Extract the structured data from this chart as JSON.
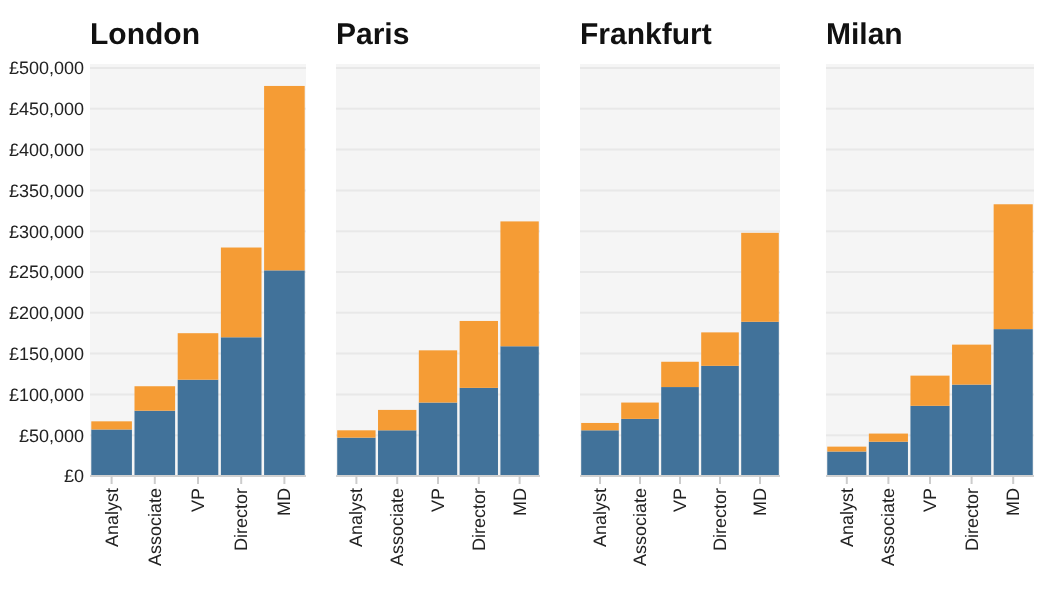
{
  "chart_data": [
    {
      "type": "bar",
      "title": "London",
      "stacked": true,
      "categories": [
        "Analyst",
        "Associate",
        "VP",
        "Director",
        "MD"
      ],
      "series": [
        {
          "color": "#41729a",
          "values": [
            57000,
            80000,
            118000,
            170000,
            252000
          ]
        },
        {
          "color": "#f59c35",
          "values": [
            10000,
            30000,
            57000,
            110000,
            226000
          ]
        }
      ],
      "ylim": [
        0,
        500000
      ],
      "yticks": [
        {
          "value": 0,
          "label": "£0"
        },
        {
          "value": 50000,
          "label": "£50,000"
        },
        {
          "value": 100000,
          "label": "£100,000"
        },
        {
          "value": 150000,
          "label": "£150,000"
        },
        {
          "value": 200000,
          "label": "£200,000"
        },
        {
          "value": 250000,
          "label": "£250,000"
        },
        {
          "value": 300000,
          "label": "£300,000"
        },
        {
          "value": 350000,
          "label": "£350,000"
        },
        {
          "value": 400000,
          "label": "£400,000"
        },
        {
          "value": 450000,
          "label": "£450,000"
        },
        {
          "value": 500000,
          "label": "£500,000"
        }
      ],
      "grid": "y"
    },
    {
      "type": "bar",
      "title": "Paris",
      "stacked": true,
      "categories": [
        "Analyst",
        "Associate",
        "VP",
        "Director",
        "MD"
      ],
      "series": [
        {
          "color": "#41729a",
          "values": [
            47000,
            56000,
            90000,
            108000,
            159000
          ]
        },
        {
          "color": "#f59c35",
          "values": [
            9000,
            25000,
            64000,
            82000,
            153000
          ]
        }
      ],
      "ylim": [
        0,
        500000
      ],
      "yticks": [
        0,
        50000,
        100000,
        150000,
        200000,
        250000,
        300000,
        350000,
        400000,
        450000,
        500000
      ],
      "grid": "y",
      "tick_labels": "x"
    },
    {
      "type": "bar",
      "title": "Frankfurt",
      "stacked": true,
      "categories": [
        "Analyst",
        "Associate",
        "VP",
        "Director",
        "MD"
      ],
      "series": [
        {
          "color": "#41729a",
          "values": [
            56000,
            70000,
            109000,
            135000,
            189000
          ]
        },
        {
          "color": "#f59c35",
          "values": [
            9000,
            20000,
            31000,
            41000,
            109000
          ]
        }
      ],
      "ylim": [
        0,
        500000
      ],
      "yticks": [
        0,
        50000,
        100000,
        150000,
        200000,
        250000,
        300000,
        350000,
        400000,
        450000,
        500000
      ],
      "grid": "y",
      "tick_labels": "x"
    },
    {
      "type": "bar",
      "title": "Milan",
      "stacked": true,
      "categories": [
        "Analyst",
        "Associate",
        "VP",
        "Director",
        "MD"
      ],
      "series": [
        {
          "color": "#41729a",
          "values": [
            30000,
            42000,
            86000,
            112000,
            180000
          ]
        },
        {
          "color": "#f59c35",
          "values": [
            6000,
            10000,
            37000,
            49000,
            153000
          ]
        }
      ],
      "ylim": [
        0,
        500000
      ],
      "yticks": [
        0,
        50000,
        100000,
        150000,
        200000,
        250000,
        300000,
        350000,
        400000,
        450000,
        500000
      ],
      "grid": "y",
      "tick_labels": "x"
    }
  ]
}
